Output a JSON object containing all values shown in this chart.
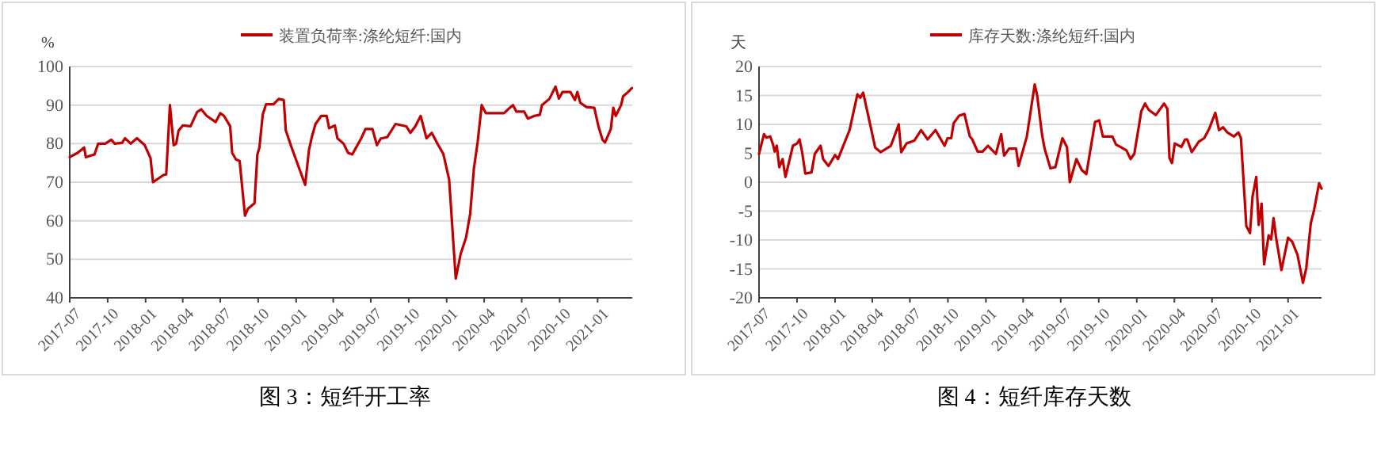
{
  "chart_data": [
    {
      "type": "line",
      "ylabel": "%",
      "legend": "top",
      "grid": "y",
      "xlim": [
        "2017-07-01",
        "2021-03-26"
      ],
      "ylim": [
        40,
        100
      ],
      "yticks": [
        40,
        50,
        60,
        70,
        80,
        90,
        100
      ],
      "xticks": [
        "2017-07",
        "2017-10",
        "2018-01",
        "2018-04",
        "2018-07",
        "2018-10",
        "2019-01",
        "2019-04",
        "2019-07",
        "2019-10",
        "2020-01",
        "2020-04",
        "2020-07",
        "2020-10",
        "2021-01"
      ],
      "x": [
        "2017-07-01",
        "2017-07-20",
        "2017-08-05",
        "2017-08-09",
        "2017-08-30",
        "2017-09-08",
        "2017-09-25",
        "2017-10-10",
        "2017-10-18",
        "2017-11-05",
        "2017-11-12",
        "2017-11-26",
        "2017-12-11",
        "2017-12-30",
        "2018-01-13",
        "2018-01-19",
        "2018-02-14",
        "2018-02-20",
        "2018-03-01",
        "2018-03-10",
        "2018-03-16",
        "2018-03-22",
        "2018-04-01",
        "2018-04-20",
        "2018-05-06",
        "2018-05-16",
        "2018-05-29",
        "2018-06-20",
        "2018-07-01",
        "2018-07-10",
        "2018-07-25",
        "2018-07-30",
        "2018-08-08",
        "2018-08-17",
        "2018-08-30",
        "2018-09-06",
        "2018-09-22",
        "2018-09-29",
        "2018-10-04",
        "2018-10-12",
        "2018-10-20",
        "2018-11-07",
        "2018-11-20",
        "2018-12-02",
        "2018-12-07",
        "2018-12-21",
        "2019-01-23",
        "2019-02-01",
        "2019-02-08",
        "2019-02-17",
        "2019-03-03",
        "2019-03-16",
        "2019-03-22",
        "2019-04-05",
        "2019-04-11",
        "2019-04-26",
        "2019-05-07",
        "2019-05-17",
        "2019-06-08",
        "2019-06-18",
        "2019-07-05",
        "2019-07-16",
        "2019-07-25",
        "2019-08-10",
        "2019-08-30",
        "2019-09-25",
        "2019-10-05",
        "2019-10-17",
        "2019-10-30",
        "2019-11-13",
        "2019-11-26",
        "2019-12-09",
        "2019-12-24",
        "2020-01-07",
        "2020-01-23",
        "2020-02-04",
        "2020-02-17",
        "2020-02-27",
        "2020-03-07",
        "2020-03-16",
        "2020-03-26",
        "2020-04-05",
        "2020-05-19",
        "2020-06-02",
        "2020-06-10",
        "2020-06-18",
        "2020-07-07",
        "2020-07-16",
        "2020-08-01",
        "2020-08-14",
        "2020-08-19",
        "2020-09-06",
        "2020-09-21",
        "2020-09-29",
        "2020-10-08",
        "2020-10-27",
        "2020-11-07",
        "2020-11-13",
        "2020-11-20",
        "2020-12-05",
        "2020-12-24",
        "2021-01-03",
        "2021-01-13",
        "2021-01-19",
        "2021-02-02",
        "2021-02-08",
        "2021-02-14",
        "2021-02-27",
        "2021-03-04",
        "2021-03-16",
        "2021-03-25"
      ],
      "series": [
        {
          "name": "装置负荷率:涤纶短纤:国内",
          "color": "#c00000",
          "values": [
            76.5,
            77.6,
            79,
            76.5,
            77.2,
            80,
            80,
            81,
            80,
            80.2,
            81.4,
            80,
            81.4,
            79.6,
            76.2,
            70,
            71.9,
            72,
            90,
            79.6,
            80,
            83.4,
            84.7,
            84.5,
            88.2,
            88.9,
            87.2,
            85.6,
            87.9,
            87.2,
            84.5,
            77.6,
            75.9,
            75.5,
            61.3,
            63.1,
            64.5,
            77.2,
            79,
            87.5,
            90.2,
            90.2,
            91.6,
            91.3,
            83.4,
            79,
            69.3,
            78.3,
            81.7,
            85.1,
            87.2,
            87.2,
            84,
            84.7,
            81.4,
            80,
            77.6,
            77.2,
            81.4,
            83.8,
            83.8,
            79.6,
            81.3,
            81.7,
            85.1,
            84.5,
            82.8,
            84.5,
            87.2,
            81.4,
            82.8,
            80.1,
            77.3,
            70.7,
            45,
            51.4,
            55.6,
            61.8,
            73.5,
            80.3,
            90,
            87.9,
            87.9,
            89.3,
            90,
            88.3,
            88.3,
            86.5,
            87.2,
            87.5,
            90,
            91.6,
            94.8,
            91.7,
            93.4,
            93.4,
            91.3,
            93.4,
            90.6,
            89.5,
            89.3,
            84.5,
            81,
            80.3,
            83.8,
            89.3,
            87.2,
            90,
            92.3,
            93.4,
            94.4
          ]
        }
      ],
      "annotations": [
        "图 3：短纤开工率"
      ]
    },
    {
      "type": "line",
      "ylabel": "天",
      "legend": "top",
      "grid": "y",
      "xlim": [
        "2017-07-01",
        "2021-03-23"
      ],
      "ylim": [
        -20,
        20
      ],
      "yticks": [
        -20,
        -15,
        -10,
        -5,
        0,
        5,
        10,
        15,
        20
      ],
      "xticks": [
        "2017-07",
        "2017-10",
        "2018-01",
        "2018-04",
        "2018-07",
        "2018-10",
        "2019-01",
        "2019-04",
        "2019-07",
        "2019-10",
        "2020-01",
        "2020-04",
        "2020-07",
        "2020-10",
        "2021-01"
      ],
      "x": [
        "2017-07-01",
        "2017-07-13",
        "2017-07-19",
        "2017-07-28",
        "2017-08-04",
        "2017-08-08",
        "2017-08-13",
        "2017-08-19",
        "2017-08-27",
        "2017-09-03",
        "2017-09-21",
        "2017-10-01",
        "2017-10-07",
        "2017-10-13",
        "2017-10-21",
        "2017-11-05",
        "2017-11-13",
        "2017-11-27",
        "2017-12-03",
        "2017-12-16",
        "2018-01-01",
        "2018-01-08",
        "2018-02-05",
        "2018-02-24",
        "2018-03-03",
        "2018-03-10",
        "2018-04-08",
        "2018-04-21",
        "2018-05-16",
        "2018-06-04",
        "2018-06-10",
        "2018-06-23",
        "2018-07-12",
        "2018-07-28",
        "2018-08-13",
        "2018-09-01",
        "2018-09-10",
        "2018-09-23",
        "2018-09-30",
        "2018-10-09",
        "2018-10-15",
        "2018-10-28",
        "2018-11-10",
        "2018-11-23",
        "2018-11-29",
        "2018-12-12",
        "2018-12-24",
        "2019-01-06",
        "2019-01-25",
        "2019-02-07",
        "2019-02-14",
        "2019-02-26",
        "2019-03-15",
        "2019-03-21",
        "2019-04-10",
        "2019-04-29",
        "2019-05-05",
        "2019-05-17",
        "2019-05-23",
        "2019-06-06",
        "2019-06-18",
        "2019-07-05",
        "2019-07-16",
        "2019-07-23",
        "2019-08-08",
        "2019-08-21",
        "2019-09-01",
        "2019-09-22",
        "2019-10-02",
        "2019-10-11",
        "2019-11-03",
        "2019-11-12",
        "2019-11-22",
        "2019-12-07",
        "2019-12-17",
        "2019-12-26",
        "2020-01-12",
        "2020-01-21",
        "2020-01-30",
        "2020-02-16",
        "2020-03-07",
        "2020-03-15",
        "2020-03-20",
        "2020-03-26",
        "2020-04-02",
        "2020-04-18",
        "2020-04-27",
        "2020-05-02",
        "2020-05-13",
        "2020-05-30",
        "2020-06-12",
        "2020-06-24",
        "2020-07-09",
        "2020-07-18",
        "2020-07-28",
        "2020-08-07",
        "2020-08-23",
        "2020-09-03",
        "2020-09-09",
        "2020-09-22",
        "2020-10-01",
        "2020-10-07",
        "2020-10-16",
        "2020-10-22",
        "2020-10-29",
        "2020-11-04",
        "2020-11-15",
        "2020-11-21",
        "2020-11-27",
        "2020-12-03",
        "2020-12-16",
        "2021-01-01",
        "2021-01-11",
        "2021-01-24",
        "2021-02-06",
        "2021-02-14",
        "2021-02-25",
        "2021-03-05",
        "2021-03-17",
        "2021-03-23"
      ],
      "series": [
        {
          "name": "库存天数:涤纶短纤:国内",
          "color": "#c00000",
          "values": [
            4.9,
            8.3,
            7.7,
            7.9,
            6.5,
            5.3,
            6.3,
            2.6,
            4,
            0.9,
            6.3,
            6.7,
            7.4,
            5.3,
            1.5,
            1.7,
            4.9,
            6.3,
            4,
            2.8,
            4.7,
            4,
            9,
            15.2,
            14.6,
            15.5,
            6,
            5.2,
            6.3,
            10,
            5.2,
            6.7,
            7.2,
            9,
            7.4,
            9,
            7.9,
            6.3,
            7.6,
            7.6,
            10.2,
            11.5,
            11.8,
            7.9,
            7.4,
            5.3,
            5.3,
            6.3,
            4.9,
            8.3,
            4.6,
            5.8,
            5.8,
            2.8,
            7.9,
            16.9,
            15,
            8.1,
            5.8,
            2.4,
            2.6,
            7.6,
            6.1,
            0,
            4,
            2.1,
            1.4,
            10.4,
            10.7,
            7.9,
            7.9,
            6.5,
            6.1,
            5.5,
            4,
            4.9,
            12.3,
            13.6,
            12.5,
            11.6,
            13.6,
            12.7,
            4.2,
            3.3,
            6.7,
            6.1,
            7.4,
            7.4,
            5.2,
            7,
            7.6,
            9.2,
            12,
            9,
            9.5,
            8.6,
            7.9,
            8.6,
            7.6,
            -7.6,
            -8.8,
            -2.5,
            0.9,
            -7.4,
            -3.7,
            -14.2,
            -9.2,
            -9.9,
            -6.2,
            -9.6,
            -15.2,
            -9.6,
            -10.3,
            -12.6,
            -17.4,
            -14.9,
            -7.1,
            -4.8,
            -0.2,
            -1.1
          ]
        }
      ],
      "annotations": [
        "图 4：短纤库存天数"
      ]
    }
  ]
}
